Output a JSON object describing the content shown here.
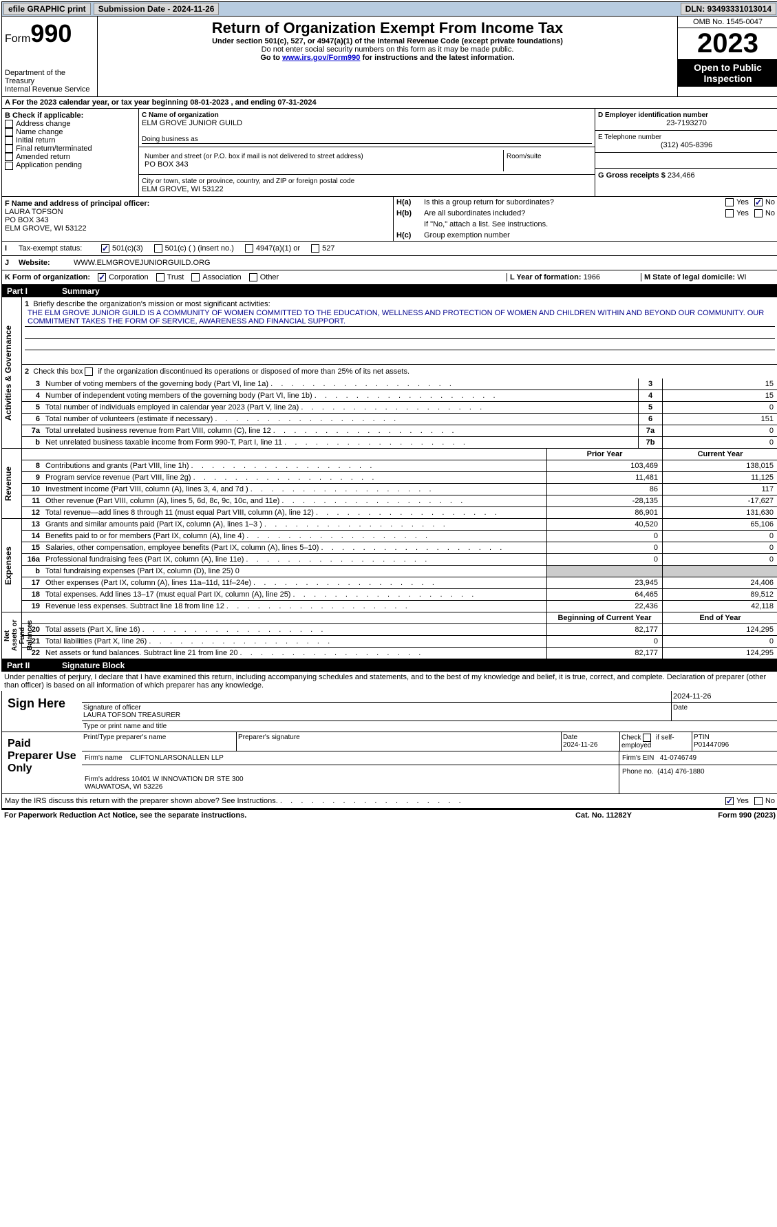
{
  "topbar": {
    "efile": "efile GRAPHIC print",
    "submission_label": "Submission Date - 2024-11-26",
    "dln_label": "DLN: 93493331013014"
  },
  "header": {
    "form_prefix": "Form",
    "form_num": "990",
    "dept": "Department of the Treasury\nInternal Revenue Service",
    "title": "Return of Organization Exempt From Income Tax",
    "sub1": "Under section 501(c), 527, or 4947(a)(1) of the Internal Revenue Code (except private foundations)",
    "sub2": "Do not enter social security numbers on this form as it may be made public.",
    "sub3_pre": "Go to ",
    "sub3_link": "www.irs.gov/Form990",
    "sub3_post": " for instructions and the latest information.",
    "omb": "OMB No. 1545-0047",
    "year": "2023",
    "open": "Open to Public Inspection"
  },
  "row_a": {
    "text": "A  For the 2023 calendar year, or tax year beginning 08-01-2023   , and ending 07-31-2024"
  },
  "box_b": {
    "label": "B Check if applicable:",
    "items": [
      "Address change",
      "Name change",
      "Initial return",
      "Final return/terminated",
      "Amended return",
      "Application pending"
    ]
  },
  "box_c": {
    "name_label": "C Name of organization",
    "name": "ELM GROVE JUNIOR GUILD",
    "dba_label": "Doing business as",
    "addr_label": "Number and street (or P.O. box if mail is not delivered to street address)",
    "addr": "PO BOX 343",
    "room_label": "Room/suite",
    "city_label": "City or town, state or province, country, and ZIP or foreign postal code",
    "city": "ELM GROVE, WI  53122"
  },
  "box_d": {
    "label": "D Employer identification number",
    "value": "23-7193270"
  },
  "box_e": {
    "label": "E Telephone number",
    "value": "(312) 405-8396"
  },
  "box_g": {
    "label": "G Gross receipts $",
    "value": "234,466"
  },
  "box_f": {
    "label": "F Name and address of principal officer:",
    "name": "LAURA TOFSON",
    "addr": "PO BOX 343",
    "city": "ELM GROVE, WI  53122"
  },
  "box_h": {
    "a": "Is this a group return for subordinates?",
    "b": "Are all subordinates included?",
    "b_note": "If \"No,\" attach a list. See instructions.",
    "c": "Group exemption number",
    "yes": "Yes",
    "no": "No",
    "ha": "H(a)",
    "hb": "H(b)",
    "hc": "H(c)"
  },
  "row_i": {
    "label": "Tax-exempt status:",
    "o1": "501(c)(3)",
    "o2": "501(c) (  ) (insert no.)",
    "o3": "4947(a)(1) or",
    "o4": "527",
    "prefix": "I"
  },
  "row_j": {
    "label": "Website:",
    "value": "WWW.ELMGROVEJUNIORGUILD.ORG",
    "prefix": "J"
  },
  "row_k": {
    "label": "K Form of organization:",
    "o1": "Corporation",
    "o2": "Trust",
    "o3": "Association",
    "o4": "Other",
    "l_label": "L Year of formation:",
    "l_val": "1966",
    "m_label": "M State of legal domicile:",
    "m_val": "WI"
  },
  "part1": {
    "label": "Part I",
    "title": "Summary"
  },
  "activities": {
    "vlabel": "Activities & Governance",
    "q1": "Briefly describe the organization's mission or most significant activities:",
    "mission": "THE ELM GROVE JUNIOR GUILD IS A COMMUNITY OF WOMEN COMMITTED TO THE EDUCATION, WELLNESS AND PROTECTION OF WOMEN AND CHILDREN WITHIN AND BEYOND OUR COMMUNITY. OUR COMMITMENT TAKES THE FORM OF SERVICE, AWARENESS AND FINANCIAL SUPPORT.",
    "q2": "Check this box      if the organization discontinued its operations or disposed of more than 25% of its net assets.",
    "rows": [
      {
        "n": "3",
        "d": "Number of voting members of the governing body (Part VI, line 1a)",
        "b": "3",
        "v": "15"
      },
      {
        "n": "4",
        "d": "Number of independent voting members of the governing body (Part VI, line 1b)",
        "b": "4",
        "v": "15"
      },
      {
        "n": "5",
        "d": "Total number of individuals employed in calendar year 2023 (Part V, line 2a)",
        "b": "5",
        "v": "0"
      },
      {
        "n": "6",
        "d": "Total number of volunteers (estimate if necessary)",
        "b": "6",
        "v": "151"
      },
      {
        "n": "7a",
        "d": "Total unrelated business revenue from Part VIII, column (C), line 12",
        "b": "7a",
        "v": "0"
      },
      {
        "n": "b",
        "d": "Net unrelated business taxable income from Form 990-T, Part I, line 11",
        "b": "7b",
        "v": "0"
      }
    ]
  },
  "revenue": {
    "vlabel": "Revenue",
    "h_prior": "Prior Year",
    "h_curr": "Current Year",
    "rows": [
      {
        "n": "8",
        "d": "Contributions and grants (Part VIII, line 1h)",
        "p": "103,469",
        "c": "138,015"
      },
      {
        "n": "9",
        "d": "Program service revenue (Part VIII, line 2g)",
        "p": "11,481",
        "c": "11,125"
      },
      {
        "n": "10",
        "d": "Investment income (Part VIII, column (A), lines 3, 4, and 7d )",
        "p": "86",
        "c": "117"
      },
      {
        "n": "11",
        "d": "Other revenue (Part VIII, column (A), lines 5, 6d, 8c, 9c, 10c, and 11e)",
        "p": "-28,135",
        "c": "-17,627"
      },
      {
        "n": "12",
        "d": "Total revenue—add lines 8 through 11 (must equal Part VIII, column (A), line 12)",
        "p": "86,901",
        "c": "131,630"
      }
    ]
  },
  "expenses": {
    "vlabel": "Expenses",
    "rows": [
      {
        "n": "13",
        "d": "Grants and similar amounts paid (Part IX, column (A), lines 1–3 )",
        "p": "40,520",
        "c": "65,106"
      },
      {
        "n": "14",
        "d": "Benefits paid to or for members (Part IX, column (A), line 4)",
        "p": "0",
        "c": "0"
      },
      {
        "n": "15",
        "d": "Salaries, other compensation, employee benefits (Part IX, column (A), lines 5–10)",
        "p": "0",
        "c": "0"
      },
      {
        "n": "16a",
        "d": "Professional fundraising fees (Part IX, column (A), line 11e)",
        "p": "0",
        "c": "0"
      },
      {
        "n": "b",
        "d": "Total fundraising expenses (Part IX, column (D), line 25) 0",
        "p": "",
        "c": "",
        "grey": true
      },
      {
        "n": "17",
        "d": "Other expenses (Part IX, column (A), lines 11a–11d, 11f–24e)",
        "p": "23,945",
        "c": "24,406"
      },
      {
        "n": "18",
        "d": "Total expenses. Add lines 13–17 (must equal Part IX, column (A), line 25)",
        "p": "64,465",
        "c": "89,512"
      },
      {
        "n": "19",
        "d": "Revenue less expenses. Subtract line 18 from line 12",
        "p": "22,436",
        "c": "42,118"
      }
    ]
  },
  "netassets": {
    "vlabel": "Net Assets or Fund Balances",
    "h_prior": "Beginning of Current Year",
    "h_curr": "End of Year",
    "rows": [
      {
        "n": "20",
        "d": "Total assets (Part X, line 16)",
        "p": "82,177",
        "c": "124,295"
      },
      {
        "n": "21",
        "d": "Total liabilities (Part X, line 26)",
        "p": "0",
        "c": "0"
      },
      {
        "n": "22",
        "d": "Net assets or fund balances. Subtract line 21 from line 20",
        "p": "82,177",
        "c": "124,295"
      }
    ]
  },
  "part2": {
    "label": "Part II",
    "title": "Signature Block",
    "declaration": "Under penalties of perjury, I declare that I have examined this return, including accompanying schedules and statements, and to the best of my knowledge and belief, it is true, correct, and complete. Declaration of preparer (other than officer) is based on all information of which preparer has any knowledge."
  },
  "sign": {
    "label": "Sign Here",
    "sig_officer": "Signature of officer",
    "date_label": "Date",
    "date": "2024-11-26",
    "officer_name": "LAURA TOFSON  TREASURER",
    "type_label": "Type or print name and title"
  },
  "preparer": {
    "label": "Paid Preparer Use Only",
    "h1": "Print/Type preparer's name",
    "h2": "Preparer's signature",
    "h3": "Date",
    "date": "2024-11-26",
    "h4_pre": "Check",
    "h4_post": "if self-employed",
    "h5": "PTIN",
    "ptin": "P01447096",
    "firm_label": "Firm's name",
    "firm": "CLIFTONLARSONALLEN LLP",
    "ein_label": "Firm's EIN",
    "ein": "41-0746749",
    "addr_label": "Firm's address",
    "addr": "10401 W INNOVATION DR STE 300\nWAUWATOSA, WI  53226",
    "phone_label": "Phone no.",
    "phone": "(414) 476-1880"
  },
  "discuss": {
    "q": "May the IRS discuss this return with the preparer shown above? See Instructions.",
    "yes": "Yes",
    "no": "No"
  },
  "footer": {
    "left": "For Paperwork Reduction Act Notice, see the separate instructions.",
    "mid": "Cat. No. 11282Y",
    "right": "Form 990 (2023)"
  },
  "style": {
    "link_color": "#0000cc",
    "header_bg": "#b8cce0",
    "black": "#000000"
  }
}
